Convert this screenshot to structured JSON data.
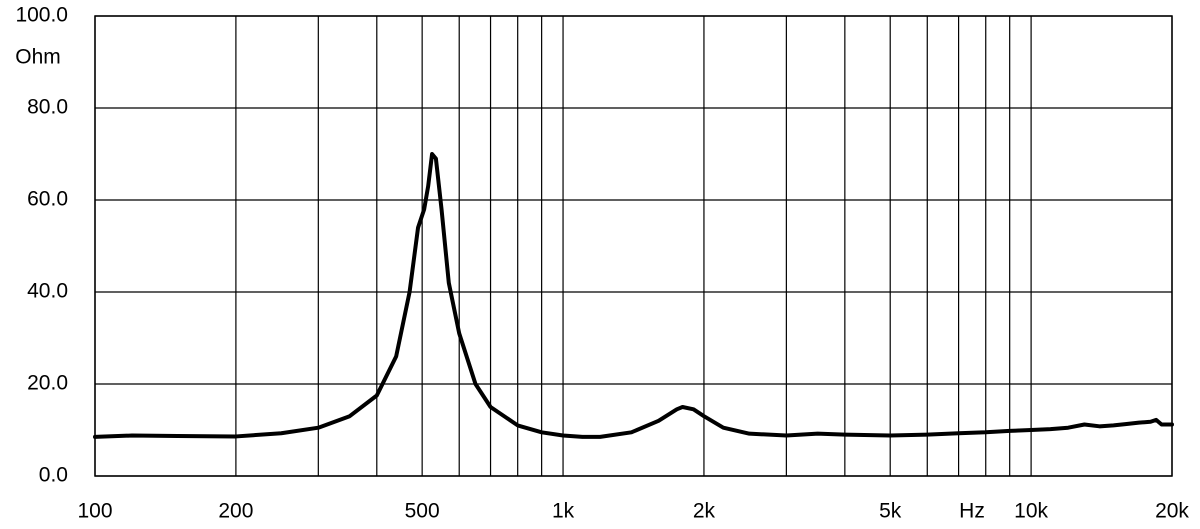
{
  "chart_data": {
    "type": "line",
    "x_scale": "log",
    "color": "#000000",
    "grid": true,
    "y_unit": "Ohm",
    "x_unit": "Hz",
    "x": [
      100,
      120,
      150,
      200,
      250,
      300,
      350,
      400,
      440,
      470,
      490,
      505,
      515,
      525,
      535,
      550,
      570,
      600,
      650,
      700,
      800,
      900,
      1000,
      1100,
      1200,
      1400,
      1600,
      1750,
      1800,
      1900,
      2000,
      2200,
      2500,
      3000,
      3500,
      4000,
      5000,
      6000,
      7000,
      8000,
      9000,
      10000,
      11000,
      12000,
      13000,
      14000,
      15000,
      16000,
      17000,
      18000,
      18500,
      19000,
      20000
    ],
    "values": [
      8.5,
      8.8,
      8.7,
      8.6,
      9.3,
      10.5,
      13,
      17.5,
      26,
      40,
      54,
      58,
      63,
      70,
      69,
      58,
      42,
      31,
      20,
      15,
      11,
      9.5,
      8.8,
      8.5,
      8.5,
      9.5,
      12,
      14.5,
      15,
      14.5,
      13,
      10.5,
      9.2,
      8.8,
      9.2,
      9,
      8.8,
      9.0,
      9.3,
      9.5,
      9.8,
      10.0,
      10.2,
      10.5,
      11.2,
      10.8,
      11,
      11.3,
      11.6,
      11.8,
      12.2,
      11.2,
      11.2
    ],
    "xlim": [
      100,
      20000
    ],
    "xticks": [
      100,
      200,
      500,
      {
        "value": 1000,
        "label": "1k"
      },
      {
        "value": 2000,
        "label": "2k"
      },
      {
        "value": 5000,
        "label": "5k"
      },
      {
        "value": 10000,
        "label": "10k"
      },
      {
        "value": 20000,
        "label": "20k"
      }
    ],
    "xminor_ticks": [
      300,
      400,
      600,
      700,
      800,
      900,
      3000,
      4000,
      6000,
      7000,
      8000,
      9000
    ],
    "ylim": [
      0,
      100
    ],
    "yticks": [
      {
        "value": 0,
        "label": "0.0"
      },
      {
        "value": 20,
        "label": "20.0"
      },
      {
        "value": 40,
        "label": "40.0"
      },
      {
        "value": 60,
        "label": "60.0"
      },
      {
        "value": 80,
        "label": "80.0"
      },
      {
        "value": 100,
        "label": "100.0"
      }
    ]
  }
}
